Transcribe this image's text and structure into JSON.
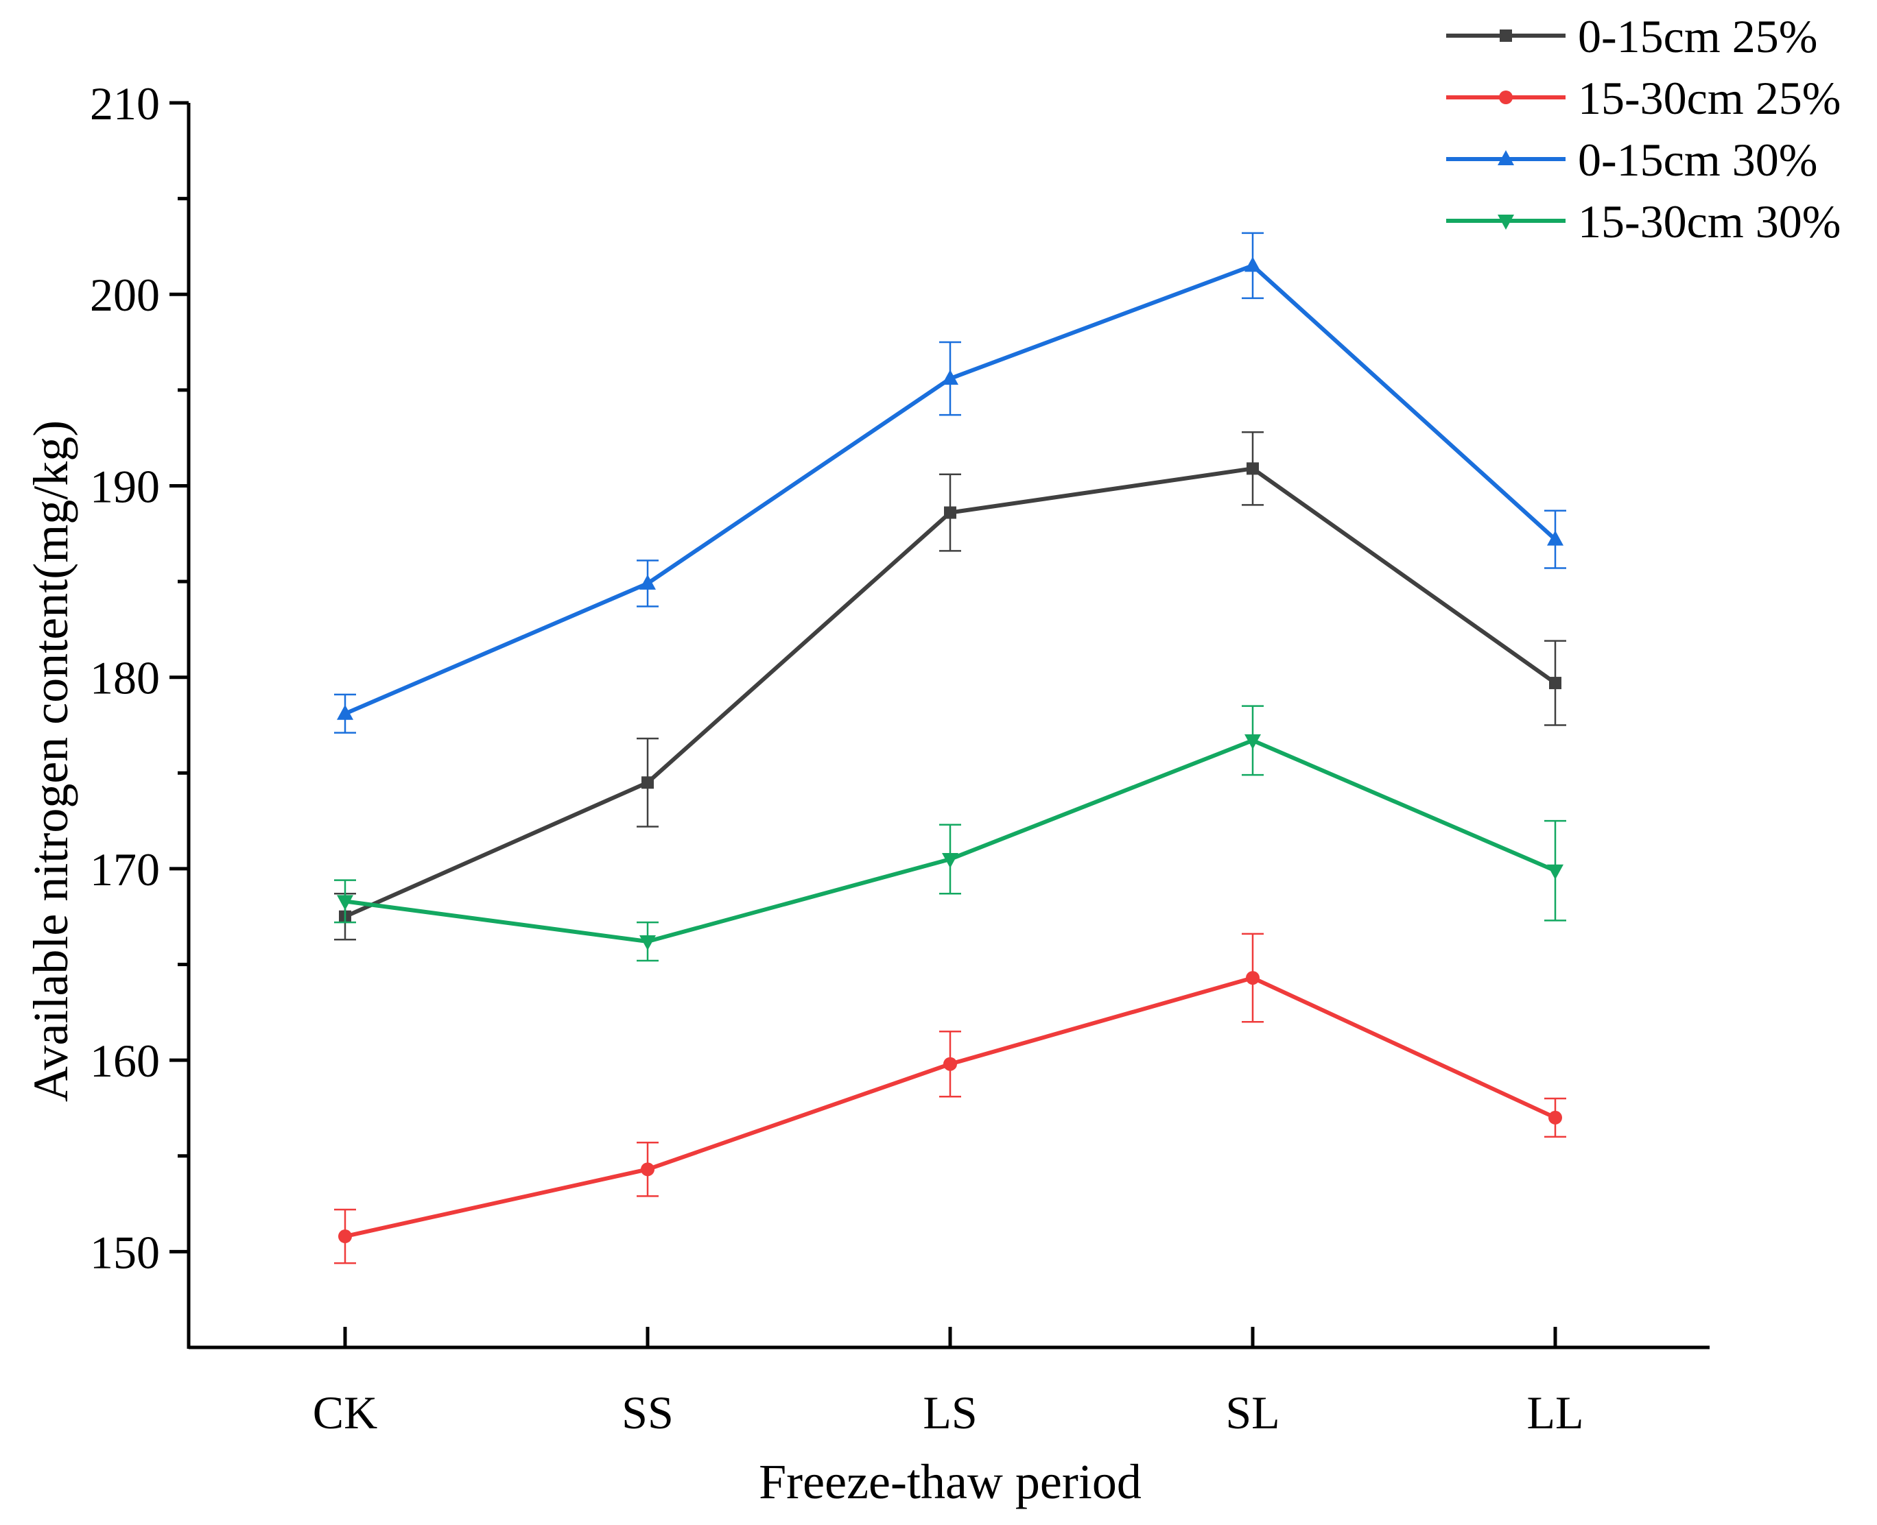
{
  "chart_data": {
    "type": "line",
    "title": "",
    "xlabel": "Freeze-thaw period",
    "ylabel": "Available nitrogen content(mg/kg)",
    "categories": [
      "CK",
      "SS",
      "LS",
      "SL",
      "LL"
    ],
    "ylim": [
      145,
      210
    ],
    "yticks": [
      150,
      160,
      170,
      180,
      190,
      200,
      210
    ],
    "grid": false,
    "legend_position": "top-right",
    "series": [
      {
        "name": "0-15cm 25%",
        "color": "#404040",
        "marker": "square",
        "values": [
          167.5,
          174.5,
          188.6,
          190.9,
          179.7
        ],
        "errors": [
          1.2,
          2.3,
          2.0,
          1.9,
          2.2
        ]
      },
      {
        "name": "15-30cm 25%",
        "color": "#ef3b3b",
        "marker": "circle",
        "values": [
          150.8,
          154.3,
          159.8,
          164.3,
          157.0
        ],
        "errors": [
          1.4,
          1.4,
          1.7,
          2.3,
          1.0
        ]
      },
      {
        "name": "0-15cm 30%",
        "color": "#1a6fdc",
        "marker": "triangle-up",
        "values": [
          178.1,
          184.9,
          195.6,
          201.5,
          187.2
        ],
        "errors": [
          1.0,
          1.2,
          1.9,
          1.7,
          1.5
        ]
      },
      {
        "name": "15-30cm 30%",
        "color": "#13a861",
        "marker": "triangle-down",
        "values": [
          168.3,
          166.2,
          170.5,
          176.7,
          169.9
        ],
        "errors": [
          1.1,
          1.0,
          1.8,
          1.8,
          2.6
        ]
      }
    ]
  }
}
